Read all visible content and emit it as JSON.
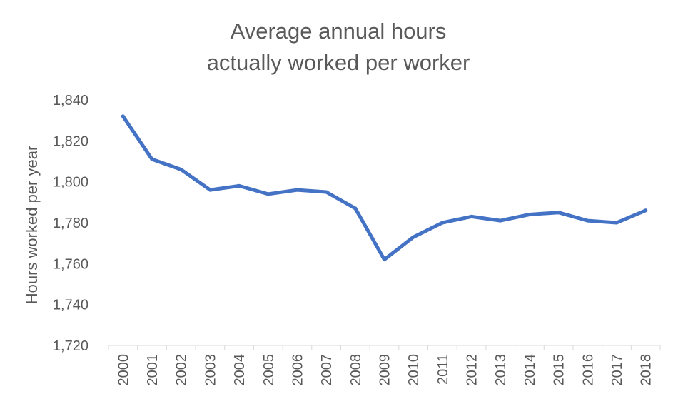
{
  "chart_data": {
    "type": "line",
    "title_lines": [
      "Average annual hours",
      "actually worked per worker"
    ],
    "xlabel": "",
    "ylabel": "Hours worked per year",
    "ylim": [
      1720,
      1840
    ],
    "y_ticks": [
      1720,
      1740,
      1760,
      1780,
      1800,
      1820,
      1840
    ],
    "y_tick_labels": [
      "1,720",
      "1,740",
      "1,760",
      "1,780",
      "1,800",
      "1,820",
      "1,840"
    ],
    "categories": [
      "2000",
      "2001",
      "2002",
      "2003",
      "2004",
      "2005",
      "2006",
      "2007",
      "2008",
      "2009",
      "2010",
      "2011",
      "2012",
      "2013",
      "2014",
      "2015",
      "2016",
      "2017",
      "2018"
    ],
    "series": [
      {
        "values": [
          1832,
          1811,
          1806,
          1796,
          1798,
          1794,
          1796,
          1795,
          1787,
          1762,
          1773,
          1780,
          1783,
          1781,
          1784,
          1785,
          1781,
          1780,
          1786
        ],
        "color": "#4472C4"
      }
    ],
    "grid": false,
    "legend": "none"
  },
  "colors": {
    "line": "#4472C4",
    "text": "#595959",
    "axis": "#d9d9d9"
  }
}
